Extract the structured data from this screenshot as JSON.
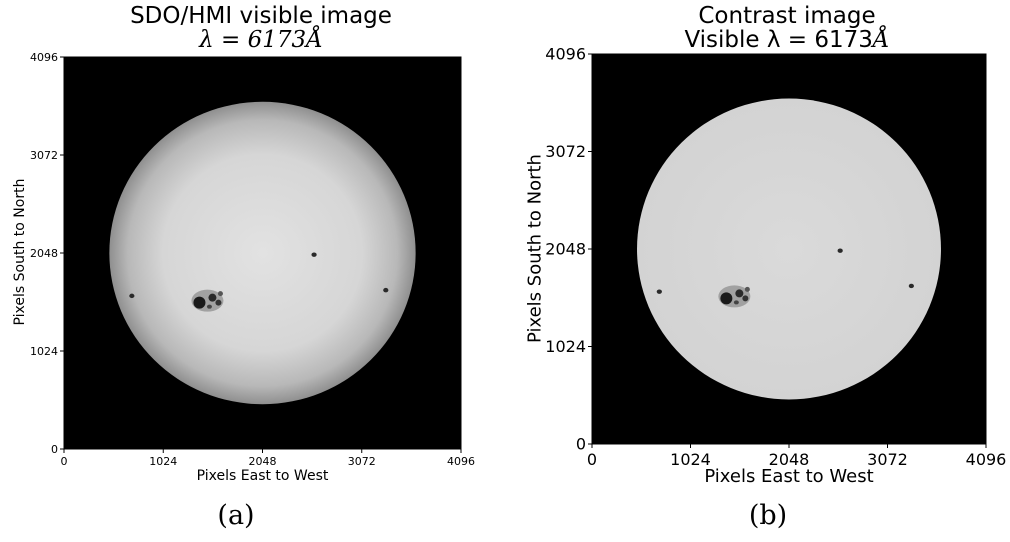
{
  "panels": [
    {
      "id": "a",
      "title_line1": "SDO/HMI visible image",
      "title_line2_prefix": "λ = 6173",
      "title_line2_unit": "Å",
      "xlabel": "Pixels East to West",
      "ylabel": "Pixels South to North",
      "caption": "(a)"
    },
    {
      "id": "b",
      "title_line1": "Contrast image",
      "title_line2_prefix": "Visible λ = 6173",
      "title_line2_unit": "Å",
      "xlabel": "Pixels East to West",
      "ylabel": "Pixels South to North",
      "caption": "(b)"
    }
  ],
  "chart_data": [
    {
      "type": "heatmap",
      "title": "SDO/HMI visible image λ = 6173Å",
      "xlabel": "Pixels East to West",
      "ylabel": "Pixels South to North",
      "xlim": [
        0,
        4096
      ],
      "ylim": [
        0,
        4096
      ],
      "xticks": [
        "0",
        "1024",
        "2048",
        "3072",
        "4096"
      ],
      "yticks": [
        "0",
        "1024",
        "2048",
        "3072",
        "4096"
      ],
      "colormap": "gray",
      "content": "solar disk, limb-darkened, sunspots",
      "disk_center": [
        2048,
        2048
      ],
      "disk_radius_px": 1580,
      "sunspots": [
        {
          "x": 1480,
          "y": 1550,
          "kind": "large group"
        },
        {
          "x": 2580,
          "y": 2030,
          "kind": "small"
        },
        {
          "x": 3320,
          "y": 1660,
          "kind": "small"
        },
        {
          "x": 700,
          "y": 1600,
          "kind": "small"
        }
      ]
    },
    {
      "type": "heatmap",
      "title": "Contrast image Visible λ = 6173Å",
      "xlabel": "Pixels East to West",
      "ylabel": "Pixels South to North",
      "xlim": [
        0,
        4096
      ],
      "ylim": [
        0,
        4096
      ],
      "xticks": [
        "0",
        "1024",
        "2048",
        "3072",
        "4096"
      ],
      "yticks": [
        "0",
        "1024",
        "2048",
        "3072",
        "4096"
      ],
      "colormap": "gray",
      "content": "solar disk, limb-darkening removed, sunspots",
      "disk_center": [
        2048,
        2048
      ],
      "disk_radius_px": 1580,
      "sunspots": [
        {
          "x": 1480,
          "y": 1550,
          "kind": "large group"
        },
        {
          "x": 2580,
          "y": 2030,
          "kind": "small"
        },
        {
          "x": 3320,
          "y": 1660,
          "kind": "small"
        },
        {
          "x": 700,
          "y": 1600,
          "kind": "small"
        }
      ]
    }
  ],
  "colors": {
    "background": "#000000",
    "disk_a_center": "#e2e2e2",
    "disk_a_limb": "#8f8f8f",
    "disk_b": "#dadada",
    "spot": "#1a1a1a"
  }
}
